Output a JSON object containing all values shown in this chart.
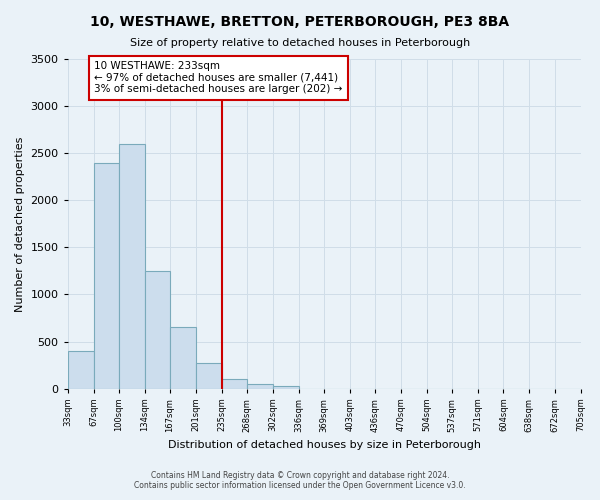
{
  "title": "10, WESTHAWE, BRETTON, PETERBOROUGH, PE3 8BA",
  "subtitle": "Size of property relative to detached houses in Peterborough",
  "xlabel": "Distribution of detached houses by size in Peterborough",
  "ylabel": "Number of detached properties",
  "bar_values": [
    400,
    2400,
    2600,
    1250,
    650,
    270,
    100,
    50,
    30,
    0,
    0,
    0,
    0,
    0,
    0,
    0,
    0,
    0,
    0,
    0
  ],
  "bin_labels": [
    "33sqm",
    "67sqm",
    "100sqm",
    "134sqm",
    "167sqm",
    "201sqm",
    "235sqm",
    "268sqm",
    "302sqm",
    "336sqm",
    "369sqm",
    "403sqm",
    "436sqm",
    "470sqm",
    "504sqm",
    "537sqm",
    "571sqm",
    "604sqm",
    "638sqm",
    "672sqm",
    "705sqm"
  ],
  "bar_color": "#ccdded",
  "bar_edge_color": "#7aaabb",
  "grid_color": "#d0dde8",
  "background_color": "#eaf2f8",
  "vline_x_index": 6,
  "vline_color": "#cc0000",
  "annotation_title": "10 WESTHAWE: 233sqm",
  "annotation_line1": "← 97% of detached houses are smaller (7,441)",
  "annotation_line2": "3% of semi-detached houses are larger (202) →",
  "annotation_box_color": "#ffffff",
  "annotation_box_edge": "#cc0000",
  "ylim": [
    0,
    3500
  ],
  "yticks": [
    0,
    500,
    1000,
    1500,
    2000,
    2500,
    3000,
    3500
  ],
  "footer_line1": "Contains HM Land Registry data © Crown copyright and database right 2024.",
  "footer_line2": "Contains public sector information licensed under the Open Government Licence v3.0."
}
